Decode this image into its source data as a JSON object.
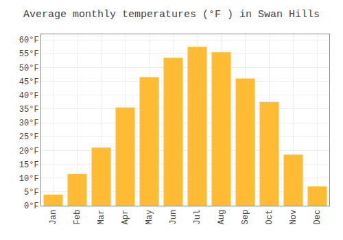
{
  "chart_data": {
    "type": "bar",
    "title": "Average monthly temperatures (°F ) in Swan Hills",
    "categories": [
      "Jan",
      "Feb",
      "Mar",
      "Apr",
      "May",
      "Jun",
      "Jul",
      "Aug",
      "Sep",
      "Oct",
      "Nov",
      "Dec"
    ],
    "values": [
      4.0,
      11.5,
      21.0,
      35.5,
      46.5,
      53.5,
      57.5,
      55.5,
      46.0,
      37.5,
      18.5,
      7.0
    ],
    "color": "#FFBB33",
    "ylim": [
      0,
      62
    ],
    "yticks": [
      {
        "value": 0,
        "label": "0°F"
      },
      {
        "value": 5,
        "label": "5°F"
      },
      {
        "value": 10,
        "label": "10°F"
      },
      {
        "value": 15,
        "label": "15°F"
      },
      {
        "value": 20,
        "label": "20°F"
      },
      {
        "value": 25,
        "label": "25°F"
      },
      {
        "value": 30,
        "label": "30°F"
      },
      {
        "value": 35,
        "label": "35°F"
      },
      {
        "value": 40,
        "label": "40°F"
      },
      {
        "value": 45,
        "label": "45°F"
      },
      {
        "value": 50,
        "label": "50°F"
      },
      {
        "value": 55,
        "label": "55°F"
      },
      {
        "value": 60,
        "label": "60°F"
      }
    ],
    "grid": true
  }
}
